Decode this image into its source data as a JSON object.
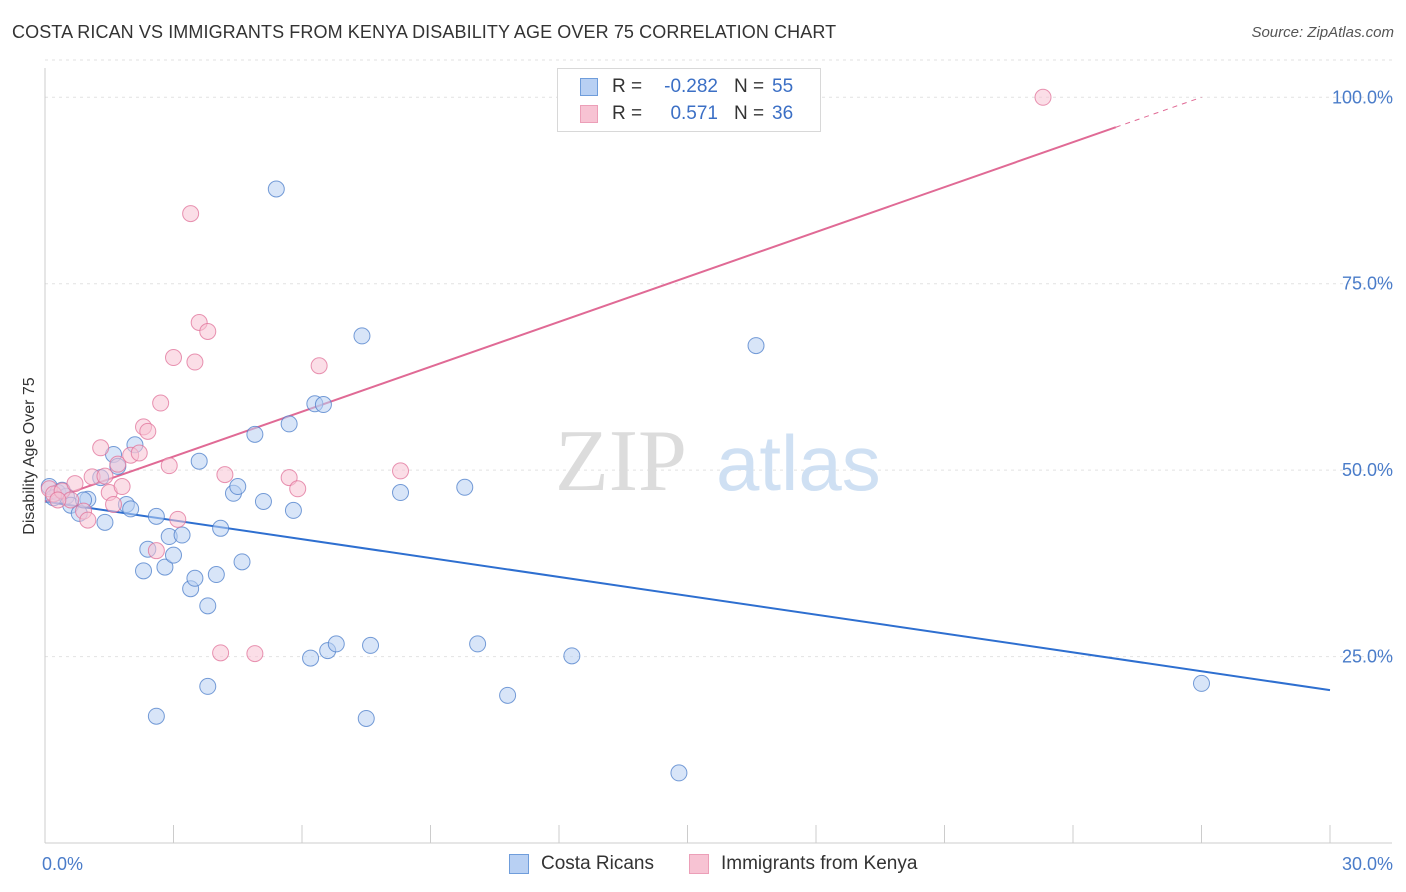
{
  "title": "COSTA RICAN VS IMMIGRANTS FROM KENYA DISABILITY AGE OVER 75 CORRELATION CHART",
  "source": "Source: ZipAtlas.com",
  "watermark": {
    "zip": "ZIP",
    "atlas": "atlas"
  },
  "legend": {
    "r_label": "R =",
    "n_label": "N =",
    "rows": [
      {
        "r": "-0.282",
        "n": "55",
        "color": "#4a7cc9",
        "fill": "#b8d0f3"
      },
      {
        "r": "0.571",
        "n": "36",
        "color": "#e07098",
        "fill": "#f7c3d3"
      }
    ]
  },
  "bottom_legend": [
    "Costa Ricans",
    "Immigrants from Kenya"
  ],
  "chart_data": {
    "type": "scatter",
    "title": "COSTA RICAN VS IMMIGRANTS FROM KENYA DISABILITY AGE OVER 75 CORRELATION CHART",
    "xlabel": "",
    "ylabel": "Disability Age Over 75",
    "xlim": [
      0,
      30
    ],
    "ylim": [
      0,
      105
    ],
    "x_tick_labels": [
      "0.0%",
      "30.0%"
    ],
    "y_tick_labels": [
      "100.0%",
      "75.0%",
      "50.0%",
      "25.0%"
    ],
    "y_ticks": [
      100,
      75,
      50,
      25
    ],
    "legend_position": "top-center",
    "grid": true,
    "series": [
      {
        "name": "Costa Ricans",
        "color": "#4a7cc9",
        "fill": "#b8d0f3",
        "trend": {
          "x": [
            0,
            30
          ],
          "y": [
            45.8,
            20.5
          ]
        },
        "points": [
          [
            0.1,
            47.8
          ],
          [
            0.3,
            47.0
          ],
          [
            0.5,
            46.5
          ],
          [
            0.6,
            45.3
          ],
          [
            0.8,
            44.2
          ],
          [
            1.0,
            46.1
          ],
          [
            1.3,
            49.0
          ],
          [
            1.4,
            43.0
          ],
          [
            1.6,
            52.1
          ],
          [
            1.7,
            50.5
          ],
          [
            1.9,
            45.4
          ],
          [
            2.0,
            44.8
          ],
          [
            2.1,
            53.4
          ],
          [
            2.3,
            36.5
          ],
          [
            2.4,
            39.4
          ],
          [
            2.6,
            17.0
          ],
          [
            2.6,
            43.8
          ],
          [
            2.8,
            37.0
          ],
          [
            2.9,
            41.1
          ],
          [
            3.0,
            38.6
          ],
          [
            3.2,
            41.3
          ],
          [
            3.4,
            34.1
          ],
          [
            3.5,
            35.5
          ],
          [
            3.6,
            51.2
          ],
          [
            3.8,
            31.8
          ],
          [
            3.8,
            21.0
          ],
          [
            4.0,
            36.0
          ],
          [
            4.1,
            42.2
          ],
          [
            4.4,
            46.9
          ],
          [
            4.5,
            47.8
          ],
          [
            4.6,
            37.7
          ],
          [
            4.9,
            54.8
          ],
          [
            5.1,
            45.8
          ],
          [
            5.4,
            87.7
          ],
          [
            5.7,
            56.2
          ],
          [
            5.8,
            44.6
          ],
          [
            6.2,
            24.8
          ],
          [
            6.3,
            58.9
          ],
          [
            6.5,
            58.8
          ],
          [
            6.6,
            25.8
          ],
          [
            6.8,
            26.7
          ],
          [
            7.4,
            68.0
          ],
          [
            7.5,
            16.7
          ],
          [
            7.6,
            26.5
          ],
          [
            8.3,
            47.0
          ],
          [
            9.8,
            47.7
          ],
          [
            10.1,
            26.7
          ],
          [
            10.8,
            19.8
          ],
          [
            12.3,
            25.1
          ],
          [
            14.8,
            9.4
          ],
          [
            16.6,
            66.7
          ],
          [
            27.0,
            21.4
          ],
          [
            0.2,
            46.3
          ],
          [
            0.4,
            47.3
          ],
          [
            0.9,
            46.0
          ]
        ]
      },
      {
        "name": "Immigrants from Kenya",
        "color": "#e07098",
        "fill": "#f7c3d3",
        "trend": {
          "x": [
            0,
            27
          ],
          "y": [
            45.8,
            100
          ]
        },
        "points": [
          [
            0.1,
            47.5
          ],
          [
            0.2,
            46.8
          ],
          [
            0.4,
            47.2
          ],
          [
            0.6,
            46.0
          ],
          [
            0.7,
            48.2
          ],
          [
            0.9,
            44.5
          ],
          [
            1.0,
            43.3
          ],
          [
            1.1,
            49.1
          ],
          [
            1.3,
            53.0
          ],
          [
            1.4,
            49.2
          ],
          [
            1.5,
            47.0
          ],
          [
            1.6,
            45.4
          ],
          [
            1.7,
            50.8
          ],
          [
            1.8,
            47.8
          ],
          [
            2.0,
            52.0
          ],
          [
            2.2,
            52.3
          ],
          [
            2.3,
            55.8
          ],
          [
            2.4,
            55.2
          ],
          [
            2.6,
            39.2
          ],
          [
            2.7,
            59.0
          ],
          [
            2.9,
            50.6
          ],
          [
            3.0,
            65.1
          ],
          [
            3.1,
            43.4
          ],
          [
            3.4,
            84.4
          ],
          [
            3.5,
            64.5
          ],
          [
            3.6,
            69.8
          ],
          [
            3.8,
            68.6
          ],
          [
            4.1,
            25.5
          ],
          [
            4.2,
            49.4
          ],
          [
            4.9,
            25.4
          ],
          [
            5.7,
            49.0
          ],
          [
            5.9,
            47.5
          ],
          [
            6.4,
            64.0
          ],
          [
            8.3,
            49.9
          ],
          [
            23.3,
            100.0
          ],
          [
            0.3,
            46.0
          ]
        ]
      }
    ]
  }
}
